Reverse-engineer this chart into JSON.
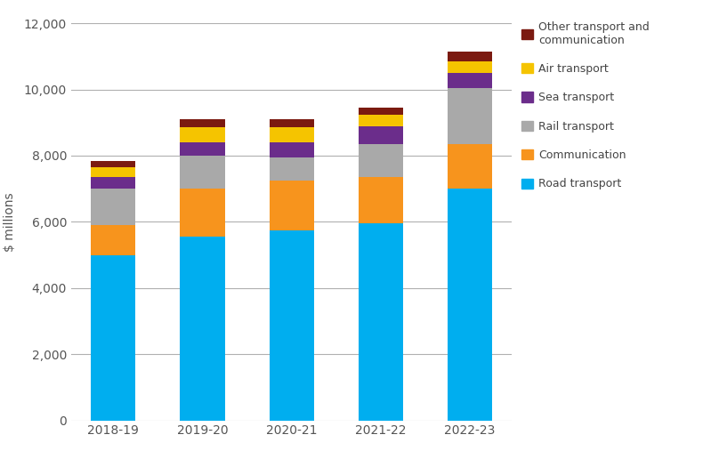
{
  "categories": [
    "2018-19",
    "2019-20",
    "2020-21",
    "2021-22",
    "2022-23"
  ],
  "series": {
    "Road transport": [
      5000,
      5550,
      5750,
      5950,
      7000
    ],
    "Communication": [
      900,
      1450,
      1500,
      1400,
      1350
    ],
    "Rail transport": [
      1100,
      1000,
      700,
      1000,
      1700
    ],
    "Sea transport": [
      350,
      400,
      450,
      550,
      450
    ],
    "Air transport": [
      300,
      450,
      450,
      350,
      350
    ],
    "Other transport and\ncommunication": [
      200,
      250,
      250,
      200,
      300
    ]
  },
  "colors": {
    "Road transport": "#00AEEF",
    "Communication": "#F7941D",
    "Rail transport": "#A9A9A9",
    "Sea transport": "#6B2D8B",
    "Air transport": "#F5C400",
    "Other transport and\ncommunication": "#7B1A10"
  },
  "legend_labels": [
    "Other transport and\ncommunication",
    "Air transport",
    "Sea transport",
    "Rail transport",
    "Communication",
    "Road transport"
  ],
  "ylabel": "$ millions",
  "ylim": [
    0,
    12000
  ],
  "yticks": [
    0,
    2000,
    4000,
    6000,
    8000,
    10000,
    12000
  ],
  "background_color": "#ffffff",
  "grid_color": "#b0b0b0",
  "bar_width": 0.5
}
